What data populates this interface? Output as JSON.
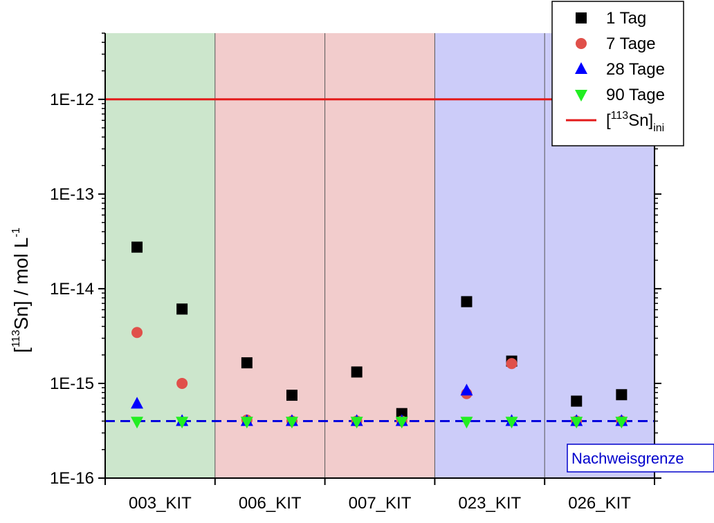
{
  "chart_data": {
    "type": "scatter",
    "y_scale": "log",
    "ylim": [
      1e-16,
      5e-12
    ],
    "y_ticks": [
      1e-16,
      1e-15,
      1e-14,
      1e-13,
      1e-12
    ],
    "y_tick_labels": [
      "1E-16",
      "1E-15",
      "1E-14",
      "1E-13",
      "1E-12"
    ],
    "ylabel": {
      "prefix": "[",
      "sup": "113",
      "main": "Sn] / mol L",
      "sup2": "-1"
    },
    "xlabel": "",
    "categories": [
      "003_KIT",
      "006_KIT",
      "007_KIT",
      "023_KIT",
      "026_KIT"
    ],
    "category_colors": [
      "#cce6cc",
      "#f2cccc",
      "#f2cccc",
      "#ccccf9",
      "#ccccf9"
    ],
    "samples_per_category": 2,
    "series": [
      {
        "name": "1 Tag",
        "marker": "square",
        "color": "#000000",
        "values": [
          [
            2.75e-14,
            6.1e-15
          ],
          [
            1.65e-15,
            7.5e-16
          ],
          [
            1.32e-15,
            4.8e-16
          ],
          [
            7.3e-15,
            1.72e-15
          ],
          [
            6.5e-16,
            7.6e-16
          ]
        ]
      },
      {
        "name": "7 Tage",
        "marker": "circle",
        "color": "#e0504a",
        "values": [
          [
            3.45e-15,
            1e-15
          ],
          [
            4.1e-16,
            4e-16
          ],
          [
            4e-16,
            4e-16
          ],
          [
            7.8e-16,
            1.62e-15
          ],
          [
            4e-16,
            4e-16
          ]
        ]
      },
      {
        "name": "28 Tage",
        "marker": "triangle-up",
        "color": "#0000ff",
        "values": [
          [
            6.1e-16,
            4e-16
          ],
          [
            4e-16,
            4e-16
          ],
          [
            4e-16,
            4e-16
          ],
          [
            8.4e-16,
            4e-16
          ],
          [
            4e-16,
            4e-16
          ]
        ]
      },
      {
        "name": "90 Tage",
        "marker": "triangle-down",
        "color": "#22ee22",
        "values": [
          [
            3.95e-16,
            3.95e-16
          ],
          [
            3.95e-16,
            3.95e-16
          ],
          [
            3.95e-16,
            3.95e-16
          ],
          [
            3.95e-16,
            3.95e-16
          ],
          [
            3.95e-16,
            3.95e-16
          ]
        ]
      }
    ],
    "reference_lines": [
      {
        "name": "initial",
        "legend": {
          "prefix": "[",
          "sup": "113",
          "main": "Sn]",
          "sub": "ini"
        },
        "value": 1e-12,
        "color": "#e31a1a",
        "style": "solid"
      },
      {
        "name": "detection-limit",
        "label": "Nachweisgrenze",
        "value": 4e-16,
        "color": "#0000dd",
        "style": "dashed"
      }
    ],
    "legend_position": "top-right",
    "grid": false
  }
}
